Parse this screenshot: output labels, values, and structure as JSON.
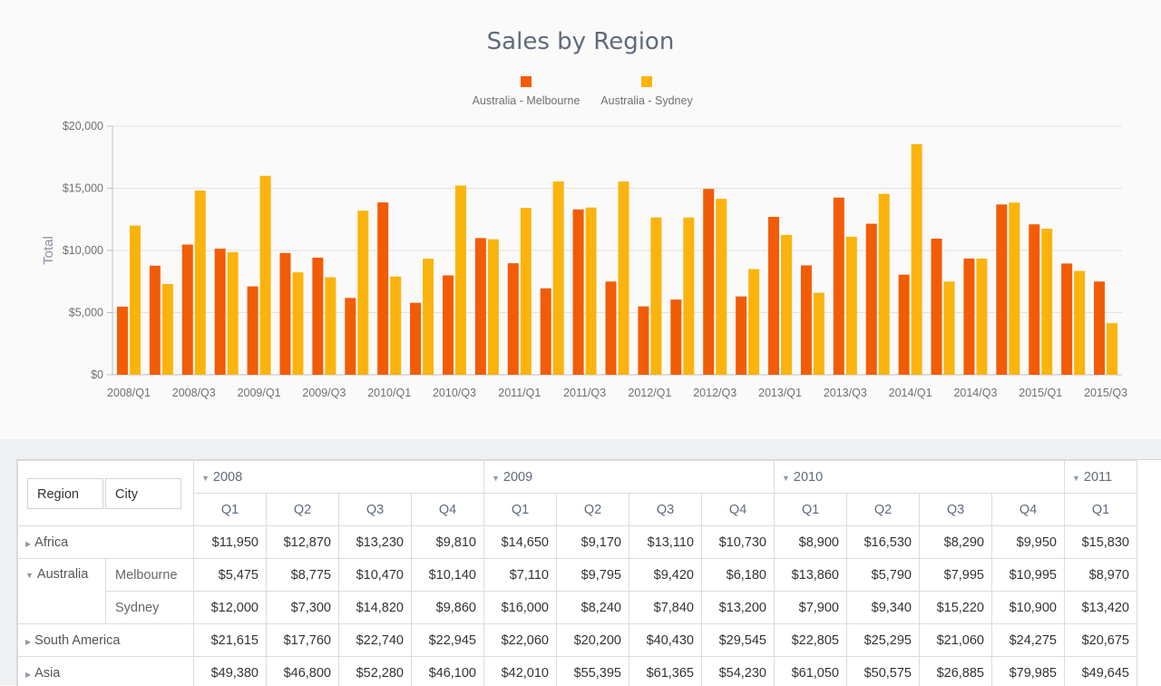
{
  "chart_data": {
    "type": "bar",
    "title": "Sales by Region",
    "ylabel": "Total",
    "xlabel": "",
    "ylim": [
      0,
      20000
    ],
    "yticks": [
      "$0",
      "$5,000",
      "$10,000",
      "$15,000",
      "$20,000"
    ],
    "legend_position": "top-center",
    "grid": true,
    "categories": [
      "2008/Q1",
      "2008/Q2",
      "2008/Q3",
      "2008/Q4",
      "2009/Q1",
      "2009/Q2",
      "2009/Q3",
      "2009/Q4",
      "2010/Q1",
      "2010/Q2",
      "2010/Q3",
      "2010/Q4",
      "2011/Q1",
      "2011/Q2",
      "2011/Q3",
      "2011/Q4",
      "2012/Q1",
      "2012/Q2",
      "2012/Q3",
      "2012/Q4",
      "2013/Q1",
      "2013/Q2",
      "2013/Q3",
      "2013/Q4",
      "2014/Q1",
      "2014/Q2",
      "2014/Q3",
      "2014/Q4",
      "2015/Q1",
      "2015/Q2",
      "2015/Q3"
    ],
    "tick_labels": [
      "2008/Q1",
      "2008/Q3",
      "2009/Q1",
      "2009/Q3",
      "2010/Q1",
      "2010/Q3",
      "2011/Q1",
      "2011/Q3",
      "2012/Q1",
      "2012/Q3",
      "2013/Q1",
      "2013/Q3",
      "2014/Q1",
      "2014/Q3",
      "2015/Q1",
      "2015/Q3"
    ],
    "series": [
      {
        "name": "Australia - Melbourne",
        "color": "#f25c05",
        "values": [
          5475,
          8775,
          10470,
          10140,
          7110,
          9795,
          9420,
          6180,
          13860,
          5790,
          7995,
          10995,
          8970,
          6950,
          13300,
          7500,
          5500,
          6050,
          14950,
          6300,
          12700,
          8800,
          14250,
          12150,
          8050,
          10950,
          9350,
          13700,
          12100,
          8950,
          7500
        ]
      },
      {
        "name": "Australia - Sydney",
        "color": "#fbb40d",
        "values": [
          12000,
          7300,
          14820,
          9860,
          16000,
          8240,
          7840,
          13200,
          7900,
          9340,
          15220,
          10900,
          13420,
          15550,
          13450,
          15550,
          12650,
          12650,
          14150,
          8500,
          11250,
          6600,
          11100,
          14550,
          18550,
          7500,
          9350,
          13850,
          11750,
          8350,
          4150
        ]
      }
    ]
  },
  "pivot": {
    "row_fields": [
      "Region",
      "City"
    ],
    "years": [
      {
        "label": "2008",
        "span": 4
      },
      {
        "label": "2009",
        "span": 4
      },
      {
        "label": "2010",
        "span": 4
      },
      {
        "label": "2011",
        "span": 1
      }
    ],
    "quarters": [
      "Q1",
      "Q2",
      "Q3",
      "Q4",
      "Q1",
      "Q2",
      "Q3",
      "Q4",
      "Q1",
      "Q2",
      "Q3",
      "Q4",
      "Q1"
    ],
    "rows": [
      {
        "region": "Africa",
        "city": "",
        "expanded": false,
        "values": [
          "$11,950",
          "$12,870",
          "$13,230",
          "$9,810",
          "$14,650",
          "$9,170",
          "$13,110",
          "$10,730",
          "$8,900",
          "$16,530",
          "$8,290",
          "$9,950",
          "$15,830"
        ]
      },
      {
        "region": "Australia",
        "city": "Melbourne",
        "expanded": true,
        "values": [
          "$5,475",
          "$8,775",
          "$10,470",
          "$10,140",
          "$7,110",
          "$9,795",
          "$9,420",
          "$6,180",
          "$13,860",
          "$5,790",
          "$7,995",
          "$10,995",
          "$8,970"
        ]
      },
      {
        "region": "",
        "city": "Sydney",
        "expanded": true,
        "values": [
          "$12,000",
          "$7,300",
          "$14,820",
          "$9,860",
          "$16,000",
          "$8,240",
          "$7,840",
          "$13,200",
          "$7,900",
          "$9,340",
          "$15,220",
          "$10,900",
          "$13,420"
        ]
      },
      {
        "region": "South America",
        "city": "",
        "expanded": false,
        "values": [
          "$21,615",
          "$17,760",
          "$22,740",
          "$22,945",
          "$22,060",
          "$20,200",
          "$40,430",
          "$29,545",
          "$22,805",
          "$25,295",
          "$21,060",
          "$24,275",
          "$20,675"
        ]
      },
      {
        "region": "Asia",
        "city": "",
        "expanded": false,
        "values": [
          "$49,380",
          "$46,800",
          "$52,280",
          "$46,100",
          "$42,010",
          "$55,395",
          "$61,365",
          "$54,230",
          "$61,050",
          "$50,575",
          "$26,885",
          "$79,985",
          "$49,645"
        ]
      }
    ]
  }
}
